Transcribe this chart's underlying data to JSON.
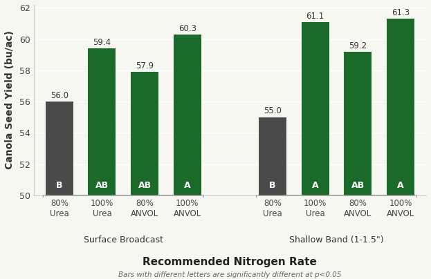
{
  "categories": [
    "80%\nUrea",
    "100%\nUrea",
    "80%\nANVOL",
    "100%\nANVOL",
    "80%\nUrea",
    "100%\nUrea",
    "80%\nANVOL",
    "100%\nANVOL"
  ],
  "values": [
    56.0,
    59.4,
    57.9,
    60.3,
    55.0,
    61.1,
    59.2,
    61.3
  ],
  "bar_colors": [
    "#4a4a4a",
    "#1a6b2a",
    "#1a6b2a",
    "#1a6b2a",
    "#4a4a4a",
    "#1a6b2a",
    "#1a6b2a",
    "#1a6b2a"
  ],
  "letters": [
    "B",
    "AB",
    "AB",
    "A",
    "B",
    "A",
    "AB",
    "A"
  ],
  "value_labels": [
    "56.0",
    "59.4",
    "57.9",
    "60.3",
    "55.0",
    "61.1",
    "59.2",
    "61.3"
  ],
  "group_labels": [
    "Surface Broadcast",
    "Shallow Band (1-1.5\")"
  ],
  "ylabel": "Canola Seed Yield (bu/ac)",
  "xlabel_main": "Recommended Nitrogen Rate",
  "xlabel_sub": "Bars with different letters are significantly different at p<0.05",
  "ylim_min": 50,
  "ylim_max": 62,
  "yticks": [
    50,
    52,
    54,
    56,
    58,
    60,
    62
  ],
  "background_color": "#f7f7f2",
  "bar_width": 0.65,
  "dark_color": "#4a4a4a",
  "green_color": "#1a6b2a",
  "x_positions": [
    0,
    1,
    2,
    3,
    5,
    6,
    7,
    8
  ]
}
